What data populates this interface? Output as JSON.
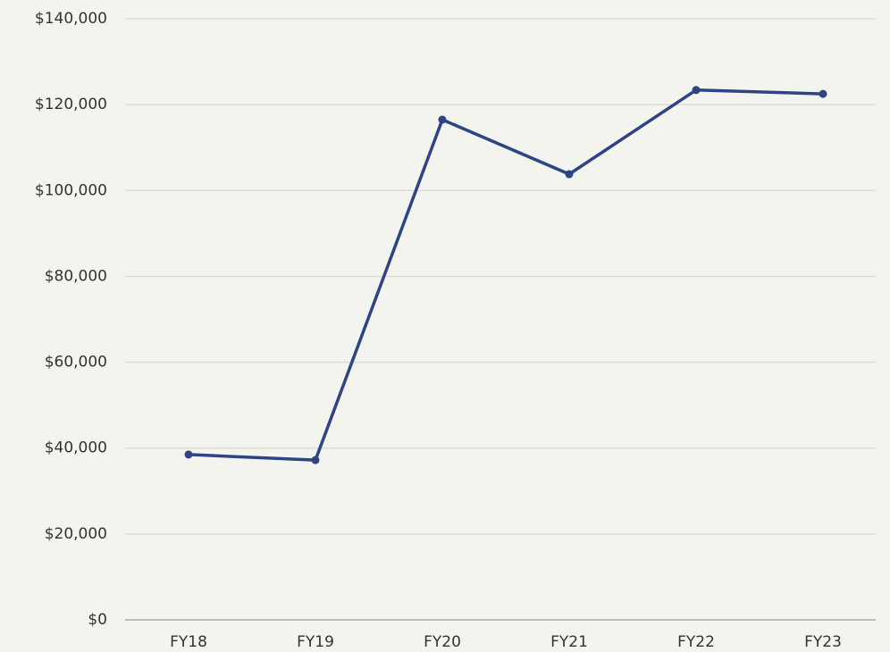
{
  "chart_data": {
    "type": "line",
    "categories": [
      "FY18",
      "FY19",
      "FY20",
      "FY21",
      "FY22",
      "FY23"
    ],
    "series": [
      {
        "color": "#2f4485",
        "values": [
          38500,
          37200,
          116500,
          103800,
          123400,
          122500
        ]
      }
    ],
    "ylim": [
      0,
      140000
    ],
    "yticks": [
      {
        "value": 0,
        "label": "$0"
      },
      {
        "value": 20000,
        "label": "$20,000"
      },
      {
        "value": 40000,
        "label": "$40,000"
      },
      {
        "value": 60000,
        "label": "$60,000"
      },
      {
        "value": 80000,
        "label": "$80,000"
      },
      {
        "value": 100000,
        "label": "$100,000"
      },
      {
        "value": 120000,
        "label": "$120,000"
      },
      {
        "value": 140000,
        "label": "$140,000"
      }
    ],
    "grid": true
  }
}
